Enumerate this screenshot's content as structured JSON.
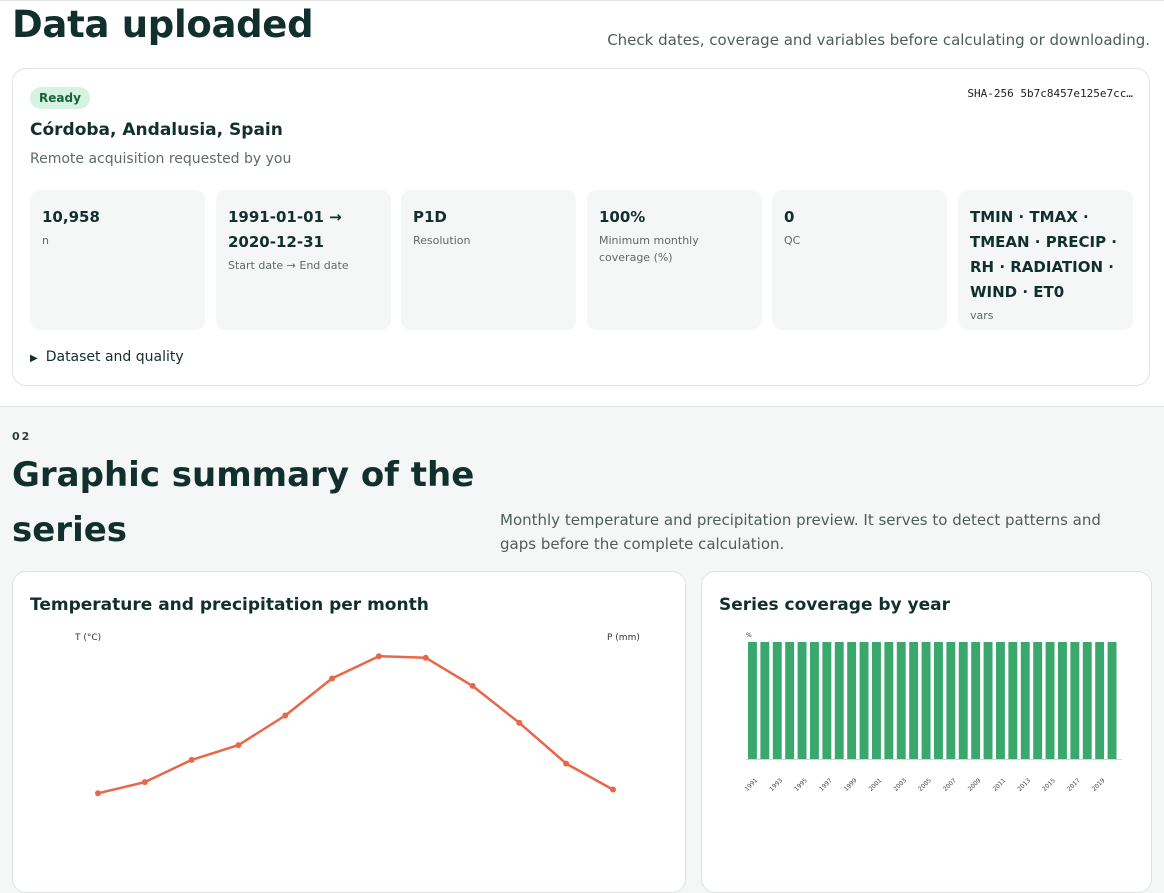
{
  "header": {
    "title": "Data uploaded",
    "subtitle": "Check dates, coverage and variables before calculating or downloading."
  },
  "dataset": {
    "status": "Ready",
    "hash": "SHA-256 5b7c8457e125e7cc…",
    "location": "Córdoba, Andalusia, Spain",
    "requested": "Remote acquisition requested by you",
    "stats": [
      {
        "value": "10,958",
        "label": "n"
      },
      {
        "value": "1991-01-01 → 2020-12-31",
        "label": "Start date → End date"
      },
      {
        "value": "P1D",
        "label": "Resolution"
      },
      {
        "value": "100%",
        "label": "Minimum monthly coverage (%)"
      },
      {
        "value": "0",
        "label": "QC"
      },
      {
        "value": "TMIN · TMAX · TMEAN · PRECIP · RH · RADIATION · WIND · ET0",
        "label": "vars"
      }
    ],
    "details_label": "Dataset and quality"
  },
  "section2": {
    "number": "02",
    "title": "Graphic summary of the series",
    "description": "Monthly temperature and precipitation preview. It serves to detect patterns and gaps before the complete calculation."
  },
  "colors": {
    "temperature_line": "#e8674a",
    "coverage_bar": "#3aa76d",
    "ready_badge_bg": "#d6f3e1"
  },
  "chart_data": [
    {
      "type": "line",
      "title": "Temperature and precipitation per month",
      "ylabel": "T (°C)",
      "y2label": "P (mm)",
      "series": [
        {
          "values": [
            9.5,
            11,
            14,
            16,
            20,
            25,
            28,
            27.8,
            24,
            19,
            13.5,
            10
          ]
        }
      ],
      "ylim": [
        4,
        31
      ]
    },
    {
      "type": "bar",
      "title": "Series coverage by year",
      "ylabel": "%",
      "categories": [
        "1991",
        "1992",
        "1993",
        "1994",
        "1995",
        "1996",
        "1997",
        "1998",
        "1999",
        "2000",
        "2001",
        "2002",
        "2003",
        "2004",
        "2005",
        "2006",
        "2007",
        "2008",
        "2009",
        "2010",
        "2011",
        "2012",
        "2013",
        "2014",
        "2015",
        "2016",
        "2017",
        "2018",
        "2019",
        "2020"
      ],
      "tick_labels": [
        "1991",
        "1993",
        "1995",
        "1997",
        "1999",
        "2001",
        "2003",
        "2005",
        "2007",
        "2009",
        "2011",
        "2013",
        "2015",
        "2017",
        "2019"
      ],
      "values": [
        100,
        100,
        100,
        100,
        100,
        100,
        100,
        100,
        100,
        100,
        100,
        100,
        100,
        100,
        100,
        100,
        100,
        100,
        100,
        100,
        100,
        100,
        100,
        100,
        100,
        100,
        100,
        100,
        100,
        100
      ],
      "ylim": [
        0,
        100
      ]
    }
  ]
}
